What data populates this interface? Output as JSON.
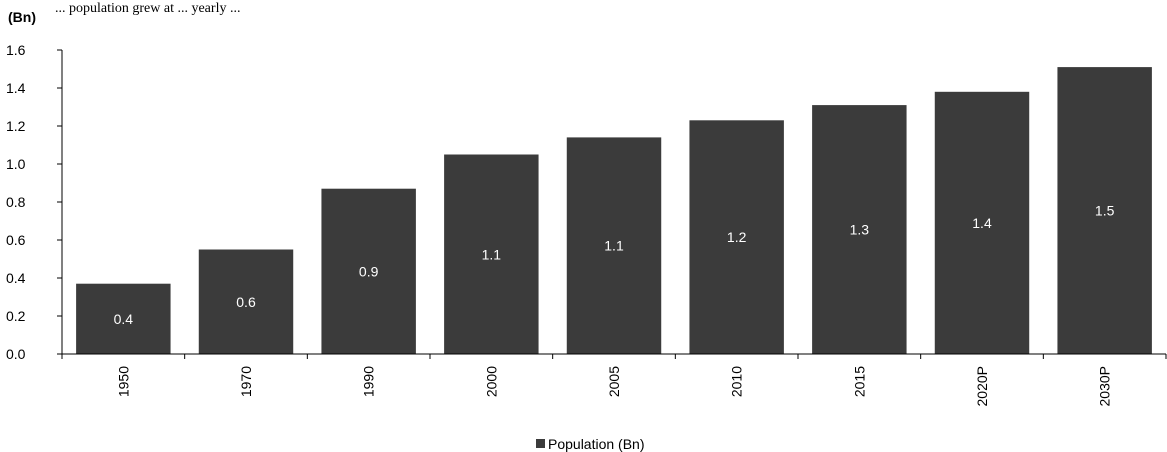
{
  "header_text": "... population grew at ... yearly ...",
  "chart_data": {
    "type": "bar",
    "unit_label": "(Bn)",
    "categories": [
      "1950",
      "1970",
      "1990",
      "2000",
      "2005",
      "2010",
      "2015",
      "2020P",
      "2030P"
    ],
    "series": [
      {
        "name": "Population (Bn)",
        "values": [
          0.37,
          0.55,
          0.87,
          1.05,
          1.14,
          1.23,
          1.31,
          1.38,
          1.51
        ],
        "labels": [
          "0.4",
          "0.6",
          "0.9",
          "1.1",
          "1.1",
          "1.2",
          "1.3",
          "1.4",
          "1.5"
        ]
      }
    ],
    "ylim": [
      0,
      1.6
    ],
    "yticks": [
      "0.0",
      "0.2",
      "0.4",
      "0.6",
      "0.8",
      "1.0",
      "1.2",
      "1.4",
      "1.6"
    ],
    "grid": false,
    "legend_position": "bottom-center",
    "bar_color": "#3b3b3b",
    "label_color": "#ffffff"
  }
}
